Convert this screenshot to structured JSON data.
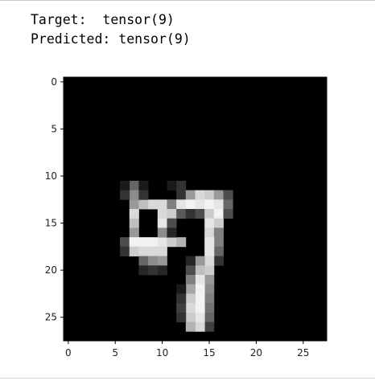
{
  "output": {
    "target_label": "Target:",
    "target_value": "tensor(9)",
    "predicted_label": "Predicted:",
    "predicted_value": "tensor(9)"
  },
  "chart_data": {
    "type": "heatmap",
    "colormap": "gray",
    "rows": 28,
    "cols": 28,
    "xticks": [
      0,
      5,
      10,
      15,
      20,
      25
    ],
    "yticks": [
      0,
      5,
      10,
      15,
      20,
      25
    ],
    "xlim": [
      -0.5,
      27.5
    ],
    "ylim": [
      27.5,
      -0.5
    ],
    "pixels": [
      [
        7,
        13,
        0.6
      ],
      [
        8,
        13,
        0.75
      ],
      [
        9,
        13,
        0.85
      ],
      [
        10,
        13,
        0.85
      ],
      [
        11,
        13,
        0.6
      ],
      [
        7,
        14,
        0.85
      ],
      [
        7,
        15,
        0.75
      ],
      [
        7,
        16,
        0.6
      ],
      [
        6,
        17,
        0.3
      ],
      [
        7,
        17,
        0.95
      ],
      [
        8,
        17,
        0.95
      ],
      [
        9,
        17,
        0.95
      ],
      [
        10,
        17,
        0.9
      ],
      [
        11,
        17,
        0.8
      ],
      [
        12,
        17,
        0.7
      ],
      [
        6,
        18,
        0.2
      ],
      [
        7,
        18,
        0.8
      ],
      [
        8,
        18,
        0.85
      ],
      [
        9,
        18,
        0.85
      ],
      [
        10,
        18,
        0.85
      ],
      [
        8,
        19,
        0.4
      ],
      [
        9,
        19,
        0.55
      ],
      [
        10,
        19,
        0.6
      ],
      [
        8,
        20,
        0.15
      ],
      [
        9,
        20,
        0.2
      ],
      [
        10,
        20,
        0.15
      ],
      [
        7,
        11,
        0.4
      ],
      [
        7,
        12,
        0.55
      ],
      [
        6,
        11,
        0.1
      ],
      [
        6,
        12,
        0.2
      ],
      [
        8,
        11,
        0.1
      ],
      [
        8,
        12,
        0.2
      ],
      [
        11,
        11,
        0.1
      ],
      [
        12,
        11,
        0.2
      ],
      [
        12,
        12,
        0.2
      ],
      [
        13,
        12,
        0.6
      ],
      [
        14,
        12,
        0.85
      ],
      [
        15,
        12,
        0.8
      ],
      [
        16,
        12,
        0.6
      ],
      [
        17,
        12,
        0.3
      ],
      [
        11,
        13,
        0.5
      ],
      [
        12,
        13,
        0.9
      ],
      [
        13,
        13,
        0.95
      ],
      [
        14,
        13,
        0.9
      ],
      [
        15,
        13,
        0.95
      ],
      [
        16,
        13,
        0.9
      ],
      [
        17,
        13,
        0.4
      ],
      [
        10,
        14,
        0.85
      ],
      [
        11,
        14,
        0.8
      ],
      [
        12,
        14,
        0.35
      ],
      [
        13,
        14,
        0.2
      ],
      [
        14,
        14,
        0.3
      ],
      [
        15,
        14,
        0.8
      ],
      [
        16,
        14,
        0.95
      ],
      [
        17,
        14,
        0.3
      ],
      [
        10,
        15,
        0.9
      ],
      [
        11,
        15,
        0.3
      ],
      [
        15,
        15,
        0.9
      ],
      [
        16,
        15,
        0.8
      ],
      [
        10,
        16,
        0.55
      ],
      [
        11,
        16,
        0.15
      ],
      [
        15,
        16,
        0.85
      ],
      [
        16,
        16,
        0.5
      ],
      [
        16,
        17,
        0.5
      ],
      [
        16,
        18,
        0.4
      ],
      [
        16,
        19,
        0.2
      ],
      [
        15,
        17,
        0.9
      ],
      [
        15,
        18,
        0.9
      ],
      [
        15,
        19,
        0.85
      ],
      [
        15,
        20,
        0.8
      ],
      [
        15,
        21,
        0.6
      ],
      [
        15,
        22,
        0.55
      ],
      [
        15,
        23,
        0.5
      ],
      [
        15,
        24,
        0.45
      ],
      [
        15,
        25,
        0.4
      ],
      [
        15,
        26,
        0.25
      ],
      [
        14,
        19,
        0.6
      ],
      [
        14,
        20,
        0.75
      ],
      [
        14,
        21,
        0.9
      ],
      [
        14,
        22,
        0.95
      ],
      [
        14,
        23,
        0.95
      ],
      [
        14,
        24,
        0.95
      ],
      [
        14,
        25,
        0.9
      ],
      [
        14,
        26,
        0.85
      ],
      [
        13,
        19,
        0.15
      ],
      [
        13,
        20,
        0.3
      ],
      [
        13,
        21,
        0.5
      ],
      [
        13,
        22,
        0.65
      ],
      [
        13,
        23,
        0.8
      ],
      [
        13,
        24,
        0.85
      ],
      [
        13,
        25,
        0.8
      ],
      [
        13,
        26,
        0.7
      ],
      [
        12,
        22,
        0.1
      ],
      [
        12,
        23,
        0.2
      ],
      [
        12,
        24,
        0.25
      ],
      [
        12,
        25,
        0.2
      ]
    ]
  }
}
